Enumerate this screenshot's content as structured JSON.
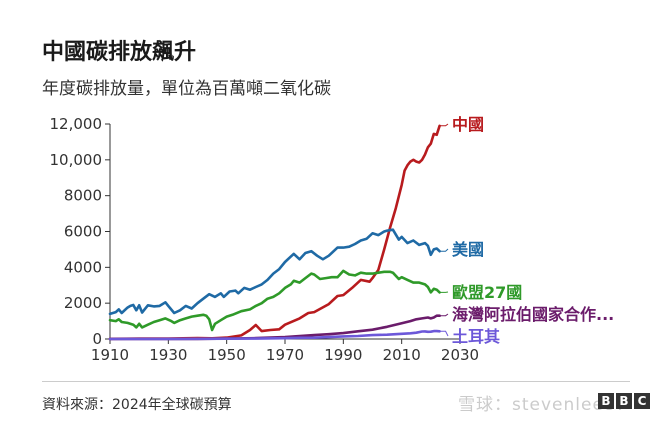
{
  "header": {
    "title": "中國碳排放飆升",
    "subtitle": "年度碳排放量，單位為百萬噸二氧化碳"
  },
  "footer": {
    "source": "資料來源：2024年全球碳預算",
    "logo_letters": [
      "B",
      "B",
      "C"
    ],
    "watermark": "雪球：stevenlee87"
  },
  "chart_data": {
    "type": "line",
    "title": "中國碳排放飆升",
    "subtitle": "年度碳排放量，單位為百萬噸二氧化碳",
    "xlabel": "",
    "ylabel": "",
    "xlim": [
      1910,
      2030
    ],
    "ylim": [
      0,
      12000
    ],
    "x_ticks": [
      1910,
      1930,
      1950,
      1970,
      1990,
      2010,
      2030
    ],
    "x_tick_labels": [
      "1910",
      "1930",
      "1950",
      "1970",
      "1990",
      "2010",
      "2030"
    ],
    "y_ticks": [
      0,
      2000,
      4000,
      6000,
      8000,
      10000,
      12000
    ],
    "y_tick_labels": [
      "0",
      "2000",
      "4000",
      "6000",
      "8000",
      "10,000",
      "12,000"
    ],
    "grid": false,
    "legend": "direct labels at line ends (right)",
    "series": [
      {
        "name": "中國",
        "color": "#b81b1e",
        "points": [
          [
            1910,
            10
          ],
          [
            1920,
            20
          ],
          [
            1930,
            30
          ],
          [
            1940,
            50
          ],
          [
            1945,
            40
          ],
          [
            1950,
            80
          ],
          [
            1955,
            200
          ],
          [
            1958,
            500
          ],
          [
            1960,
            780
          ],
          [
            1962,
            440
          ],
          [
            1965,
            500
          ],
          [
            1968,
            540
          ],
          [
            1970,
            800
          ],
          [
            1975,
            1150
          ],
          [
            1978,
            1450
          ],
          [
            1980,
            1500
          ],
          [
            1985,
            1950
          ],
          [
            1988,
            2400
          ],
          [
            1990,
            2450
          ],
          [
            1993,
            2850
          ],
          [
            1996,
            3300
          ],
          [
            1999,
            3200
          ],
          [
            2000,
            3400
          ],
          [
            2002,
            3850
          ],
          [
            2004,
            5000
          ],
          [
            2006,
            6200
          ],
          [
            2008,
            7300
          ],
          [
            2010,
            8600
          ],
          [
            2011,
            9400
          ],
          [
            2012,
            9700
          ],
          [
            2013,
            9900
          ],
          [
            2014,
            10000
          ],
          [
            2015,
            9900
          ],
          [
            2016,
            9850
          ],
          [
            2017,
            10000
          ],
          [
            2018,
            10300
          ],
          [
            2019,
            10700
          ],
          [
            2020,
            10900
          ],
          [
            2021,
            11450
          ],
          [
            2022,
            11400
          ],
          [
            2023,
            11900
          ]
        ]
      },
      {
        "name": "美國",
        "color": "#1f6aa5",
        "points": [
          [
            1910,
            1400
          ],
          [
            1912,
            1500
          ],
          [
            1913,
            1650
          ],
          [
            1914,
            1450
          ],
          [
            1916,
            1750
          ],
          [
            1917,
            1850
          ],
          [
            1918,
            1900
          ],
          [
            1919,
            1600
          ],
          [
            1920,
            1880
          ],
          [
            1921,
            1480
          ],
          [
            1923,
            1880
          ],
          [
            1925,
            1820
          ],
          [
            1927,
            1850
          ],
          [
            1929,
            2050
          ],
          [
            1930,
            1850
          ],
          [
            1932,
            1450
          ],
          [
            1934,
            1600
          ],
          [
            1936,
            1850
          ],
          [
            1938,
            1700
          ],
          [
            1940,
            2000
          ],
          [
            1942,
            2250
          ],
          [
            1944,
            2500
          ],
          [
            1946,
            2350
          ],
          [
            1948,
            2550
          ],
          [
            1949,
            2350
          ],
          [
            1951,
            2650
          ],
          [
            1953,
            2700
          ],
          [
            1954,
            2550
          ],
          [
            1956,
            2850
          ],
          [
            1958,
            2750
          ],
          [
            1960,
            2900
          ],
          [
            1962,
            3050
          ],
          [
            1964,
            3300
          ],
          [
            1966,
            3650
          ],
          [
            1968,
            3900
          ],
          [
            1970,
            4300
          ],
          [
            1972,
            4600
          ],
          [
            1973,
            4750
          ],
          [
            1975,
            4450
          ],
          [
            1977,
            4800
          ],
          [
            1979,
            4900
          ],
          [
            1981,
            4650
          ],
          [
            1983,
            4450
          ],
          [
            1985,
            4650
          ],
          [
            1988,
            5100
          ],
          [
            1990,
            5100
          ],
          [
            1992,
            5150
          ],
          [
            1994,
            5300
          ],
          [
            1996,
            5500
          ],
          [
            1998,
            5600
          ],
          [
            2000,
            5900
          ],
          [
            2002,
            5800
          ],
          [
            2004,
            6000
          ],
          [
            2005,
            6050
          ],
          [
            2007,
            6100
          ],
          [
            2009,
            5550
          ],
          [
            2010,
            5700
          ],
          [
            2012,
            5350
          ],
          [
            2014,
            5500
          ],
          [
            2016,
            5250
          ],
          [
            2018,
            5350
          ],
          [
            2019,
            5200
          ],
          [
            2020,
            4700
          ],
          [
            2021,
            5000
          ],
          [
            2022,
            5050
          ],
          [
            2023,
            4900
          ]
        ]
      },
      {
        "name": "歐盟27國",
        "color": "#2f9a29",
        "points": [
          [
            1910,
            1050
          ],
          [
            1912,
            1000
          ],
          [
            1913,
            1100
          ],
          [
            1914,
            950
          ],
          [
            1916,
            900
          ],
          [
            1918,
            800
          ],
          [
            1919,
            650
          ],
          [
            1920,
            850
          ],
          [
            1921,
            650
          ],
          [
            1923,
            800
          ],
          [
            1925,
            950
          ],
          [
            1927,
            1050
          ],
          [
            1929,
            1150
          ],
          [
            1931,
            1000
          ],
          [
            1932,
            900
          ],
          [
            1934,
            1050
          ],
          [
            1936,
            1150
          ],
          [
            1938,
            1250
          ],
          [
            1940,
            1300
          ],
          [
            1942,
            1350
          ],
          [
            1943,
            1300
          ],
          [
            1944,
            1100
          ],
          [
            1945,
            500
          ],
          [
            1946,
            850
          ],
          [
            1948,
            1050
          ],
          [
            1950,
            1250
          ],
          [
            1952,
            1350
          ],
          [
            1955,
            1550
          ],
          [
            1958,
            1650
          ],
          [
            1960,
            1850
          ],
          [
            1962,
            2000
          ],
          [
            1964,
            2250
          ],
          [
            1966,
            2350
          ],
          [
            1968,
            2550
          ],
          [
            1970,
            2850
          ],
          [
            1972,
            3050
          ],
          [
            1973,
            3250
          ],
          [
            1975,
            3150
          ],
          [
            1977,
            3400
          ],
          [
            1979,
            3650
          ],
          [
            1980,
            3600
          ],
          [
            1982,
            3350
          ],
          [
            1984,
            3400
          ],
          [
            1986,
            3450
          ],
          [
            1988,
            3450
          ],
          [
            1990,
            3800
          ],
          [
            1992,
            3600
          ],
          [
            1994,
            3550
          ],
          [
            1996,
            3700
          ],
          [
            1998,
            3650
          ],
          [
            2000,
            3650
          ],
          [
            2002,
            3700
          ],
          [
            2004,
            3750
          ],
          [
            2006,
            3750
          ],
          [
            2007,
            3700
          ],
          [
            2009,
            3350
          ],
          [
            2010,
            3450
          ],
          [
            2012,
            3300
          ],
          [
            2014,
            3150
          ],
          [
            2016,
            3150
          ],
          [
            2018,
            3050
          ],
          [
            2019,
            2900
          ],
          [
            2020,
            2600
          ],
          [
            2021,
            2800
          ],
          [
            2022,
            2750
          ],
          [
            2023,
            2600
          ]
        ]
      },
      {
        "name": "海灣阿拉伯國家合作...",
        "color": "#6b1c6b",
        "points": [
          [
            1910,
            0
          ],
          [
            1940,
            5
          ],
          [
            1950,
            20
          ],
          [
            1960,
            50
          ],
          [
            1970,
            110
          ],
          [
            1975,
            170
          ],
          [
            1980,
            220
          ],
          [
            1985,
            270
          ],
          [
            1990,
            330
          ],
          [
            1995,
            430
          ],
          [
            2000,
            520
          ],
          [
            2005,
            680
          ],
          [
            2010,
            880
          ],
          [
            2013,
            1000
          ],
          [
            2015,
            1100
          ],
          [
            2017,
            1150
          ],
          [
            2019,
            1200
          ],
          [
            2020,
            1150
          ],
          [
            2021,
            1200
          ],
          [
            2022,
            1300
          ],
          [
            2023,
            1300
          ]
        ]
      },
      {
        "name": "土耳其",
        "color": "#6c58d9",
        "points": [
          [
            1910,
            0
          ],
          [
            1930,
            5
          ],
          [
            1950,
            15
          ],
          [
            1960,
            25
          ],
          [
            1970,
            45
          ],
          [
            1975,
            65
          ],
          [
            1980,
            75
          ],
          [
            1985,
            105
          ],
          [
            1990,
            145
          ],
          [
            1995,
            165
          ],
          [
            2000,
            220
          ],
          [
            2005,
            240
          ],
          [
            2010,
            290
          ],
          [
            2013,
            320
          ],
          [
            2015,
            350
          ],
          [
            2017,
            420
          ],
          [
            2018,
            425
          ],
          [
            2019,
            400
          ],
          [
            2020,
            410
          ],
          [
            2021,
            440
          ],
          [
            2022,
            440
          ],
          [
            2023,
            430
          ]
        ]
      }
    ]
  }
}
